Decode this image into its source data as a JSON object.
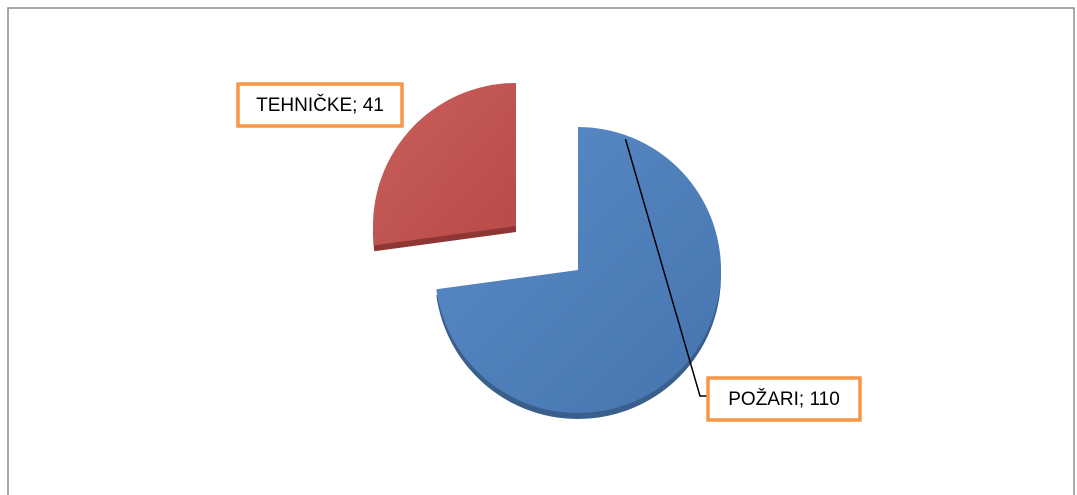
{
  "chart_data": {
    "type": "pie",
    "values": [
      110,
      41
    ],
    "value_labels": [
      "POŽARI; 110",
      "TEHNIČKE; 41"
    ],
    "colors": [
      "#4f81bd",
      "#c0504d"
    ]
  }
}
